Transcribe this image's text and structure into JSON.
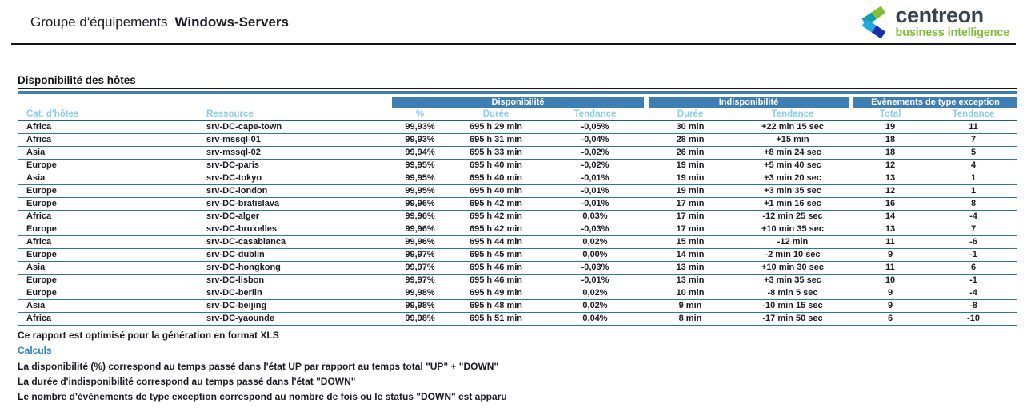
{
  "header": {
    "title_prefix": "Groupe d'équipements",
    "title_name": "Windows-Servers",
    "logo": {
      "brand": "centreon",
      "tagline": "business intelligence"
    }
  },
  "section": {
    "title": "Disponibilité des hôtes"
  },
  "table": {
    "groups": [
      {
        "label": "Disponibilité"
      },
      {
        "label": "Indisponibilité"
      },
      {
        "label": "Evènements de type exception"
      }
    ],
    "subcolumns": [
      "Cat. d'hôtes",
      "Ressource",
      "%",
      "Durée",
      "Tendance",
      "Durée",
      "Tendance",
      "Total",
      "Tendance"
    ],
    "rows": [
      [
        "Africa",
        "srv-DC-cape-town",
        "99,93%",
        "695 h 29 min",
        "-0,05%",
        "30 min",
        "+22 min 15 sec",
        "19",
        "11"
      ],
      [
        "Africa",
        "srv-mssql-01",
        "99,93%",
        "695 h 31 min",
        "-0,04%",
        "28 min",
        "+15 min",
        "18",
        "7"
      ],
      [
        "Asia",
        "srv-mssql-02",
        "99,94%",
        "695 h 33 min",
        "-0,02%",
        "26 min",
        "+8 min 24 sec",
        "18",
        "5"
      ],
      [
        "Europe",
        "srv-DC-paris",
        "99,95%",
        "695 h 40 min",
        "-0,02%",
        "19 min",
        "+5 min 40 sec",
        "12",
        "4"
      ],
      [
        "Asia",
        "srv-DC-tokyo",
        "99,95%",
        "695 h 40 min",
        "-0,01%",
        "19 min",
        "+3 min 20 sec",
        "13",
        "1"
      ],
      [
        "Europe",
        "srv-DC-london",
        "99,95%",
        "695 h 40 min",
        "-0,01%",
        "19 min",
        "+3 min 35 sec",
        "12",
        "1"
      ],
      [
        "Europe",
        "srv-DC-bratislava",
        "99,96%",
        "695 h 42 min",
        "-0,01%",
        "17 min",
        "+1 min 16 sec",
        "16",
        "8"
      ],
      [
        "Africa",
        "srv-DC-alger",
        "99,96%",
        "695 h 42 min",
        "0,03%",
        "17 min",
        "-12 min 25 sec",
        "14",
        "-4"
      ],
      [
        "Europe",
        "srv-DC-bruxelles",
        "99,96%",
        "695 h 42 min",
        "-0,03%",
        "17 min",
        "+10 min 35 sec",
        "13",
        "7"
      ],
      [
        "Africa",
        "srv-DC-casablanca",
        "99,96%",
        "695 h 44 min",
        "0,02%",
        "15 min",
        "-12 min",
        "11",
        "-6"
      ],
      [
        "Europe",
        "srv-DC-dublin",
        "99,97%",
        "695 h 45 min",
        "0,00%",
        "14 min",
        "-2 min 10 sec",
        "9",
        "-1"
      ],
      [
        "Asia",
        "srv-DC-hongkong",
        "99,97%",
        "695 h 46 min",
        "-0,03%",
        "13 min",
        "+10 min 30 sec",
        "11",
        "6"
      ],
      [
        "Europe",
        "srv-DC-lisbon",
        "99,97%",
        "695 h 46 min",
        "-0,01%",
        "13 min",
        "+3 min 35 sec",
        "10",
        "-1"
      ],
      [
        "Europe",
        "srv-DC-berlin",
        "99,98%",
        "695 h 49 min",
        "0,02%",
        "10 min",
        "-8 min 5 sec",
        "9",
        "-4"
      ],
      [
        "Asia",
        "srv-DC-beijing",
        "99,98%",
        "695 h 48 min",
        "0,02%",
        "9 min",
        "-10 min 15 sec",
        "9",
        "-8"
      ],
      [
        "Africa",
        "srv-DC-yaounde",
        "99,98%",
        "695 h 51 min",
        "0,04%",
        "8 min",
        "-17 min 50 sec",
        "6",
        "-10"
      ]
    ]
  },
  "footer": {
    "note": "Ce rapport est optimisé pour la génération en format XLS",
    "calculs_title": "Calculs",
    "lines": [
      "La disponibilité (%) correspond au temps passé dans l'état UP par rapport au temps total \"UP\" + \"DOWN\"",
      "La durée d'indisponibilité correspond au temps passé dans l'état \"DOWN\"",
      "Le nombre d'évènements de type exception correspond au nombre de fois ou le status \"DOWN\" est apparu"
    ]
  },
  "colors": {
    "group_header_bg": "#3e7eb2",
    "subheader_text": "#8ecbec",
    "row_border": "#2e74b5",
    "accent_blue": "#2e86c4",
    "logo_green": "#84bd3a",
    "logo_teal": "#129ea8",
    "logo_lightblue": "#20a8e0",
    "logo_darkblue": "#1b2fae",
    "logo_text": "#37434f"
  }
}
